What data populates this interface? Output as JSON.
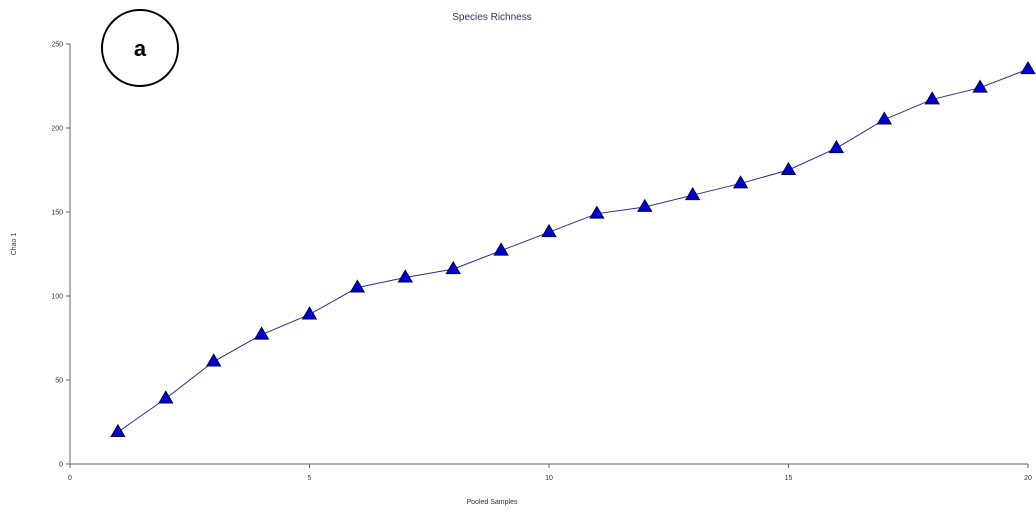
{
  "panel_label": "a",
  "chart_data": {
    "type": "line",
    "title": "Species Richness",
    "xlabel": "Pooled Samples",
    "ylabel": "Chao 1",
    "xlim": [
      0,
      20
    ],
    "ylim": [
      0,
      250
    ],
    "x_ticks": [
      "0",
      "5",
      "10",
      "15",
      "20"
    ],
    "y_ticks": [
      "0",
      "50",
      "100",
      "150",
      "200",
      "250"
    ],
    "grid": false,
    "marker": "triangle",
    "series": [
      {
        "x": [
          1,
          2,
          3,
          4,
          5,
          6,
          7,
          8,
          9,
          10,
          11,
          12,
          13,
          14,
          15,
          16,
          17,
          18,
          19,
          20
        ],
        "values": [
          19,
          39,
          61,
          77,
          89,
          105,
          111,
          116,
          127,
          138,
          149,
          153,
          160,
          167,
          175,
          188,
          205,
          217,
          224,
          235
        ],
        "line_color": "#2a2aa0",
        "marker_color": "#0000cc"
      }
    ]
  }
}
